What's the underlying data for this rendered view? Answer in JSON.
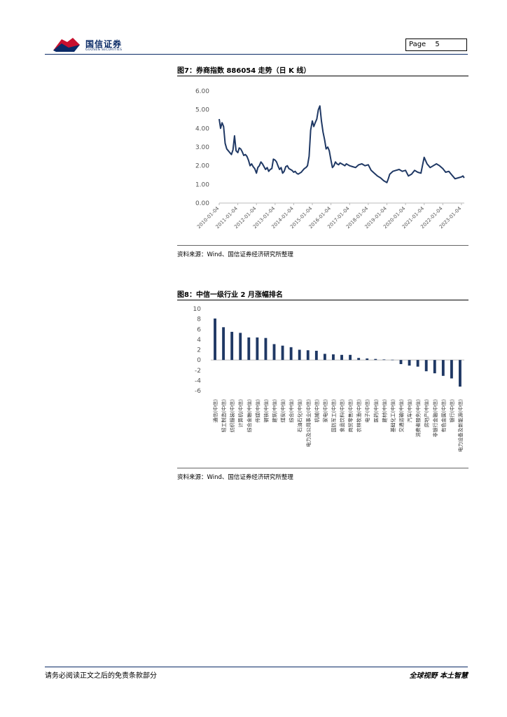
{
  "header": {
    "brand_cn": "国信证券",
    "brand_en": "GUOSEN SECURITIES",
    "page_label": "Page",
    "page_number": "5"
  },
  "figures": {
    "fig7": {
      "title": "图7：券商指数 886054 走势（日 K 线）",
      "source": "资料来源：Wind、国信证券经济研究所整理"
    },
    "fig8": {
      "title": "图8：中信一级行业 2 月涨幅排名",
      "source": "资料来源：Wind、国信证券经济研究所整理"
    }
  },
  "chart_data": [
    {
      "type": "line",
      "title": "",
      "ylim": [
        0,
        6
      ],
      "yticks": [
        "6.00",
        "5.00",
        "4.00",
        "3.00",
        "2.00",
        "1.00",
        "0.00"
      ],
      "xticks": [
        "2010-01-04",
        "2011-01-04",
        "2012-01-04",
        "2013-01-04",
        "2014-01-04",
        "2015-01-04",
        "2016-01-04",
        "2017-01-04",
        "2018-01-04",
        "2019-01-04",
        "2020-01-04",
        "2021-01-04",
        "2022-01-04",
        "2023-01-04"
      ],
      "line_color": "#1f3864",
      "series": [
        {
          "x": [
            "2010-01-04",
            "2010-02-01",
            "2010-03-01",
            "2010-04-01",
            "2010-05-01",
            "2010-06-01",
            "2010-07-01",
            "2010-08-01",
            "2010-09-01",
            "2010-10-01",
            "2010-11-01",
            "2010-12-01",
            "2011-01-04",
            "2011-02-01",
            "2011-03-01",
            "2011-04-01",
            "2011-05-01",
            "2011-06-01",
            "2011-07-01",
            "2011-08-01",
            "2011-09-01",
            "2011-10-01",
            "2011-11-01",
            "2011-12-01",
            "2012-01-04",
            "2012-02-01",
            "2012-03-01",
            "2012-04-01",
            "2012-05-01",
            "2012-06-01",
            "2012-07-01",
            "2012-08-01",
            "2012-09-01",
            "2012-10-01",
            "2012-11-01",
            "2012-12-01",
            "2013-01-04",
            "2013-02-01",
            "2013-03-01",
            "2013-04-01",
            "2013-05-01",
            "2013-06-01",
            "2013-07-01",
            "2013-08-01",
            "2013-09-01",
            "2013-10-01",
            "2013-11-01",
            "2013-12-01",
            "2014-01-04",
            "2014-02-01",
            "2014-03-01",
            "2014-04-01",
            "2014-05-01",
            "2014-06-01",
            "2014-07-01",
            "2014-08-01",
            "2014-09-01",
            "2014-10-01",
            "2014-11-01",
            "2014-12-01",
            "2015-01-04",
            "2015-02-01",
            "2015-03-01",
            "2015-04-01",
            "2015-05-01",
            "2015-06-01",
            "2015-07-01",
            "2015-08-01",
            "2015-09-01",
            "2015-10-01",
            "2015-11-01",
            "2015-12-01",
            "2016-01-04",
            "2016-02-01",
            "2016-03-01",
            "2016-04-01",
            "2016-05-01",
            "2016-06-01",
            "2016-07-01",
            "2016-08-01",
            "2016-09-01",
            "2016-10-01",
            "2016-11-01",
            "2016-12-01",
            "2017-01-04",
            "2017-03-01",
            "2017-05-01",
            "2017-07-01",
            "2017-09-01",
            "2017-11-01",
            "2018-01-04",
            "2018-03-01",
            "2018-05-01",
            "2018-07-01",
            "2018-09-01",
            "2018-11-01",
            "2019-01-04",
            "2019-02-01",
            "2019-03-01",
            "2019-05-01",
            "2019-07-01",
            "2019-09-01",
            "2019-11-01",
            "2020-01-04",
            "2020-03-01",
            "2020-05-01",
            "2020-07-01",
            "2020-09-01",
            "2020-11-01",
            "2021-01-04",
            "2021-03-01",
            "2021-05-01",
            "2021-07-01",
            "2021-09-01",
            "2021-11-01",
            "2022-01-04",
            "2022-03-01",
            "2022-05-01",
            "2022-07-01",
            "2022-09-01",
            "2022-11-01",
            "2023-01-04",
            "2023-02-01",
            "2023-02-28"
          ],
          "y": [
            4.5,
            4.0,
            4.3,
            4.1,
            3.2,
            2.9,
            2.8,
            2.7,
            2.6,
            2.85,
            3.6,
            2.8,
            2.7,
            2.95,
            2.9,
            2.75,
            2.55,
            2.6,
            2.5,
            2.3,
            2.0,
            2.1,
            1.95,
            1.85,
            1.6,
            1.9,
            2.0,
            2.2,
            2.1,
            1.95,
            1.8,
            1.9,
            1.7,
            1.8,
            1.85,
            2.35,
            2.3,
            2.2,
            2.0,
            1.8,
            1.9,
            1.6,
            1.7,
            1.95,
            2.0,
            1.85,
            1.8,
            1.75,
            1.65,
            1.7,
            1.6,
            1.55,
            1.6,
            1.65,
            1.75,
            1.85,
            1.9,
            2.0,
            2.5,
            3.9,
            4.4,
            4.1,
            4.3,
            4.5,
            5.0,
            5.2,
            4.4,
            3.8,
            3.4,
            2.9,
            3.0,
            2.8,
            2.3,
            1.9,
            2.0,
            2.2,
            2.1,
            2.05,
            2.15,
            2.1,
            2.05,
            2.0,
            2.1,
            2.05,
            2.0,
            1.95,
            1.9,
            2.05,
            2.1,
            2.0,
            2.05,
            1.75,
            1.6,
            1.45,
            1.35,
            1.2,
            1.1,
            1.3,
            1.55,
            1.7,
            1.75,
            1.8,
            1.7,
            1.75,
            1.45,
            1.55,
            1.75,
            1.65,
            1.6,
            2.45,
            2.1,
            1.9,
            2.0,
            2.1,
            2.0,
            1.85,
            1.65,
            1.7,
            1.5,
            1.3,
            1.35,
            1.4,
            1.45,
            1.35
          ]
        }
      ]
    },
    {
      "type": "bar",
      "title": "",
      "ylim": [
        -6,
        10
      ],
      "yticks": [
        "10",
        "8",
        "6",
        "4",
        "2",
        "0",
        "-2",
        "-4",
        "-6"
      ],
      "bar_color": "#1f3864",
      "categories": [
        "通信(中信)",
        "轻工制造(中信)",
        "纺织服装(中信)",
        "计算机(中信)",
        "综合金融(中信)",
        "传媒(中信)",
        "钢铁(中信)",
        "建筑(中信)",
        "煤炭(中信)",
        "综合(中信)",
        "石油石化(中信)",
        "电力及公用事业(中信)",
        "机械(中信)",
        "家电(中信)",
        "国防军工(中信)",
        "食品饮料(中信)",
        "商贸零售(中信)",
        "农林牧渔(中信)",
        "电子(中信)",
        "医药(中信)",
        "建材(中信)",
        "基础化工(中信)",
        "交通运输(中信)",
        "汽车(中信)",
        "消费者服务(中信)",
        "房地产(中信)",
        "非银行金融(中信)",
        "有色金属(中信)",
        "银行(中信)",
        "电力设备及新能源(中信)"
      ],
      "values": [
        8.1,
        6.4,
        5.5,
        5.3,
        4.4,
        4.4,
        4.3,
        3.1,
        2.8,
        2.5,
        2.0,
        1.9,
        1.8,
        1.2,
        1.1,
        1.0,
        1.0,
        0.4,
        0.3,
        0.2,
        0.1,
        0.05,
        -0.8,
        -1.1,
        -1.3,
        -2.2,
        -2.6,
        -3.1,
        -3.6,
        -5.2
      ]
    }
  ],
  "footer": {
    "disclaimer": "请务必阅读正文之后的免责条款部分",
    "slogan": "全球视野  本土智慧"
  }
}
